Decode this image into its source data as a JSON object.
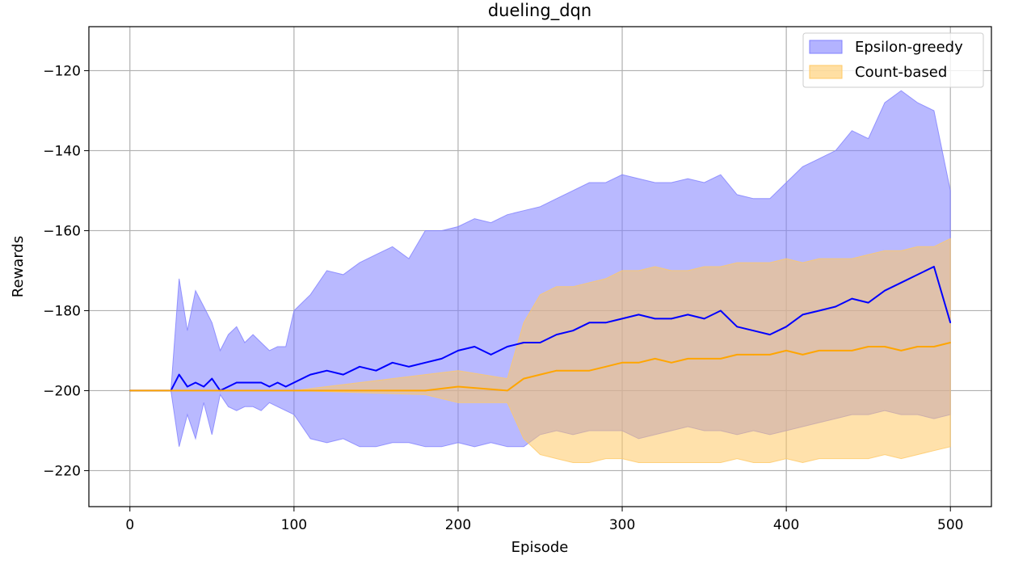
{
  "chart_data": {
    "type": "line",
    "title": "dueling_dqn",
    "xlabel": "Episode",
    "ylabel": "Rewards",
    "xlim": [
      -25,
      525
    ],
    "ylim": [
      -229,
      -109
    ],
    "xticks": [
      0,
      100,
      200,
      300,
      400,
      500
    ],
    "yticks": [
      -220,
      -200,
      -180,
      -160,
      -140,
      -120
    ],
    "xtick_labels": [
      "0",
      "100",
      "200",
      "300",
      "400",
      "500"
    ],
    "ytick_labels": [
      "−220",
      "−200",
      "−180",
      "−160",
      "−140",
      "−120"
    ],
    "grid": true,
    "legend_position": "top-right",
    "series": [
      {
        "name": "Epsilon-greedy",
        "color": "#0000ff",
        "band_color": "#8080ff",
        "x": [
          0,
          25,
          30,
          35,
          40,
          45,
          50,
          55,
          60,
          65,
          70,
          75,
          80,
          85,
          90,
          95,
          100,
          110,
          120,
          130,
          140,
          150,
          160,
          170,
          180,
          190,
          200,
          210,
          220,
          230,
          240,
          250,
          260,
          270,
          280,
          290,
          300,
          310,
          320,
          330,
          340,
          350,
          360,
          370,
          380,
          390,
          400,
          410,
          420,
          430,
          440,
          450,
          460,
          470,
          480,
          490,
          500
        ],
        "mean": [
          -200,
          -200,
          -196,
          -199,
          -198,
          -199,
          -197,
          -200,
          -199,
          -198,
          -198,
          -198,
          -198,
          -199,
          -198,
          -199,
          -198,
          -196,
          -195,
          -196,
          -194,
          -195,
          -193,
          -194,
          -193,
          -192,
          -190,
          -189,
          -191,
          -189,
          -188,
          -188,
          -186,
          -185,
          -183,
          -183,
          -182,
          -181,
          -182,
          -182,
          -181,
          -182,
          -180,
          -184,
          -185,
          -186,
          -184,
          -181,
          -180,
          -179,
          -177,
          -178,
          -175,
          -173,
          -171,
          -169,
          -183
        ],
        "lower": [
          -200,
          -200,
          -214,
          -206,
          -212,
          -203,
          -211,
          -201,
          -204,
          -205,
          -204,
          -204,
          -205,
          -203,
          -204,
          -205,
          -206,
          -212,
          -213,
          -212,
          -214,
          -214,
          -213,
          -213,
          -214,
          -214,
          -213,
          -214,
          -213,
          -214,
          -214,
          -211,
          -210,
          -211,
          -210,
          -210,
          -210,
          -212,
          -211,
          -210,
          -209,
          -210,
          -210,
          -211,
          -210,
          -211,
          -210,
          -209,
          -208,
          -207,
          -206,
          -206,
          -205,
          -206,
          -206,
          -207,
          -206
        ],
        "upper": [
          -200,
          -200,
          -172,
          -185,
          -175,
          -179,
          -183,
          -190,
          -186,
          -184,
          -188,
          -186,
          -188,
          -190,
          -189,
          -189,
          -180,
          -176,
          -170,
          -171,
          -168,
          -166,
          -164,
          -167,
          -160,
          -160,
          -159,
          -157,
          -158,
          -156,
          -155,
          -154,
          -152,
          -150,
          -148,
          -148,
          -146,
          -147,
          -148,
          -148,
          -147,
          -148,
          -146,
          -151,
          -152,
          -152,
          -148,
          -144,
          -142,
          -140,
          -135,
          -137,
          -128,
          -125,
          -128,
          -130,
          -150
        ]
      },
      {
        "name": "Count-based",
        "color": "#ffa500",
        "band_color": "#ffc966",
        "x": [
          0,
          100,
          180,
          200,
          230,
          240,
          250,
          260,
          270,
          280,
          290,
          300,
          310,
          320,
          330,
          340,
          350,
          360,
          370,
          380,
          390,
          400,
          410,
          420,
          430,
          440,
          450,
          460,
          470,
          480,
          490,
          500
        ],
        "mean": [
          -200,
          -200,
          -200,
          -199,
          -200,
          -197,
          -196,
          -195,
          -195,
          -195,
          -194,
          -193,
          -193,
          -192,
          -193,
          -192,
          -192,
          -192,
          -191,
          -191,
          -191,
          -190,
          -191,
          -190,
          -190,
          -190,
          -189,
          -189,
          -190,
          -189,
          -189,
          -188
        ],
        "lower": [
          -200,
          -200,
          -201,
          -203,
          -203,
          -212,
          -216,
          -217,
          -218,
          -218,
          -217,
          -217,
          -218,
          -218,
          -218,
          -218,
          -218,
          -218,
          -217,
          -218,
          -218,
          -217,
          -218,
          -217,
          -217,
          -217,
          -217,
          -216,
          -217,
          -216,
          -215,
          -214
        ],
        "upper": [
          -200,
          -200,
          -196,
          -195,
          -197,
          -183,
          -176,
          -174,
          -174,
          -173,
          -172,
          -170,
          -170,
          -169,
          -170,
          -170,
          -169,
          -169,
          -168,
          -168,
          -168,
          -167,
          -168,
          -167,
          -167,
          -167,
          -166,
          -165,
          -165,
          -164,
          -164,
          -162
        ]
      }
    ]
  }
}
